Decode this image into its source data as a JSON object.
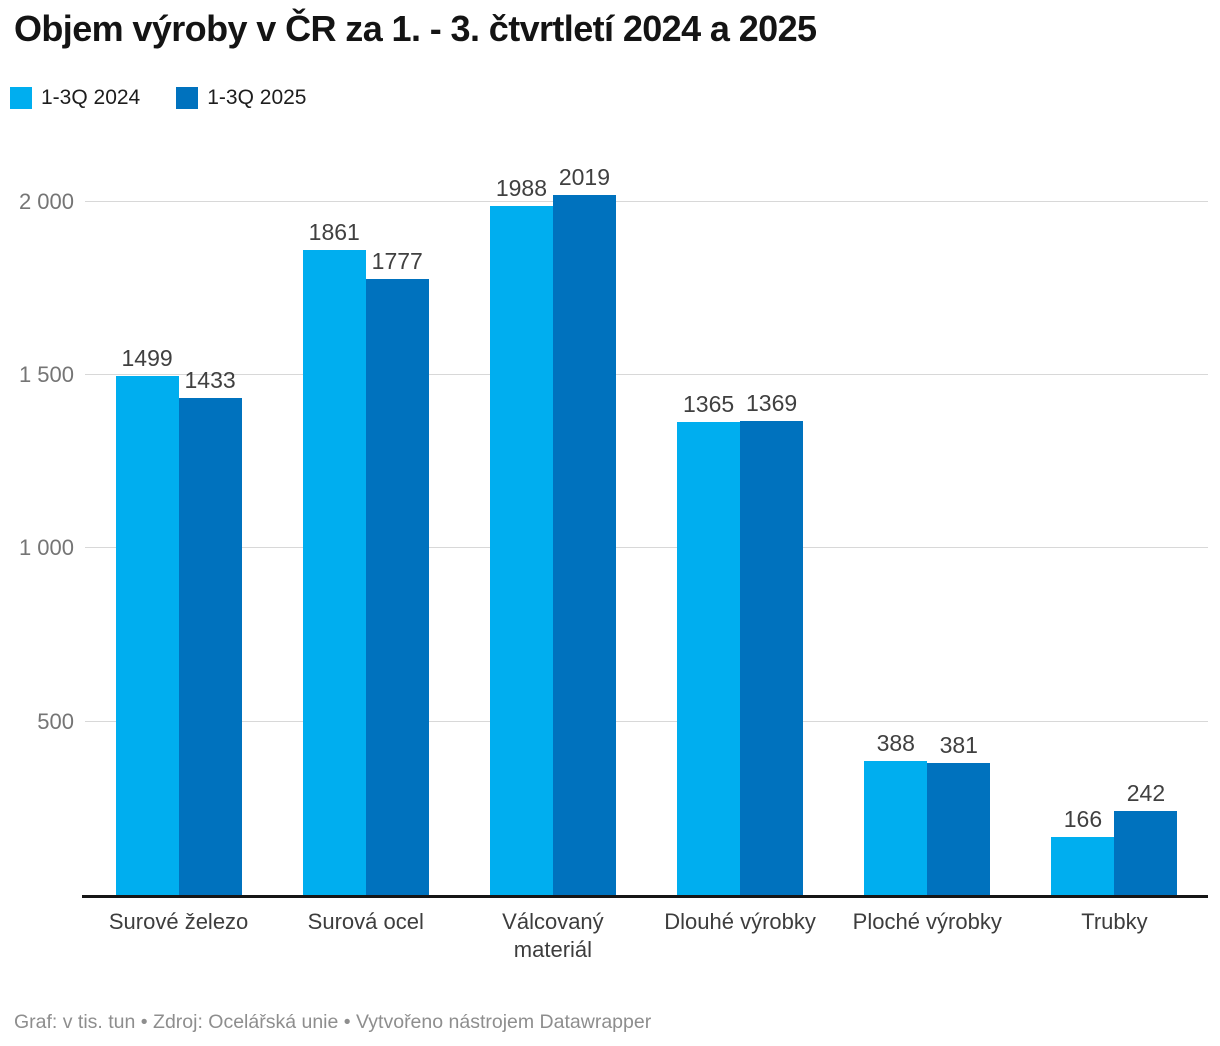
{
  "title": "Objem výroby v ČR za 1. - 3. čtvrtletí 2024 a 2025",
  "footer": "Graf: v tis. tun • Zdroj: Ocelářská unie • Vytvořeno nástrojem Datawrapper",
  "colors": {
    "series_2024": "#00aeef",
    "series_2025": "#0072be",
    "gridline": "#d8d8d8",
    "axis_line": "#161616",
    "title_text": "#141414",
    "tick_text": "#757575",
    "value_text": "#404040",
    "footer_text": "#8e8e8e"
  },
  "chart_data": {
    "type": "bar",
    "title": "Objem výroby v ČR za 1. - 3. čtvrtletí 2024 a 2025",
    "unit": "tis. tun",
    "categories": [
      "Surové železo",
      "Surová ocel",
      "Válcovaný materiál",
      "Dlouhé výrobky",
      "Ploché výrobky",
      "Trubky"
    ],
    "series": [
      {
        "name": "1-3Q 2024",
        "color": "#00aeef",
        "values": [
          1499,
          1861,
          1988,
          1365,
          388,
          166
        ]
      },
      {
        "name": "1-3Q 2025",
        "color": "#0072be",
        "values": [
          1433,
          1777,
          2019,
          1369,
          381,
          242
        ]
      }
    ],
    "xlabel": "",
    "ylabel": "",
    "yticks": [
      500,
      1000,
      1500,
      2000
    ],
    "ytick_labels": [
      "500",
      "1 000",
      "1 500",
      "2 000"
    ],
    "ylim": [
      0,
      2020
    ],
    "grid": true,
    "legend_position": "top-left",
    "value_labels": true
  }
}
